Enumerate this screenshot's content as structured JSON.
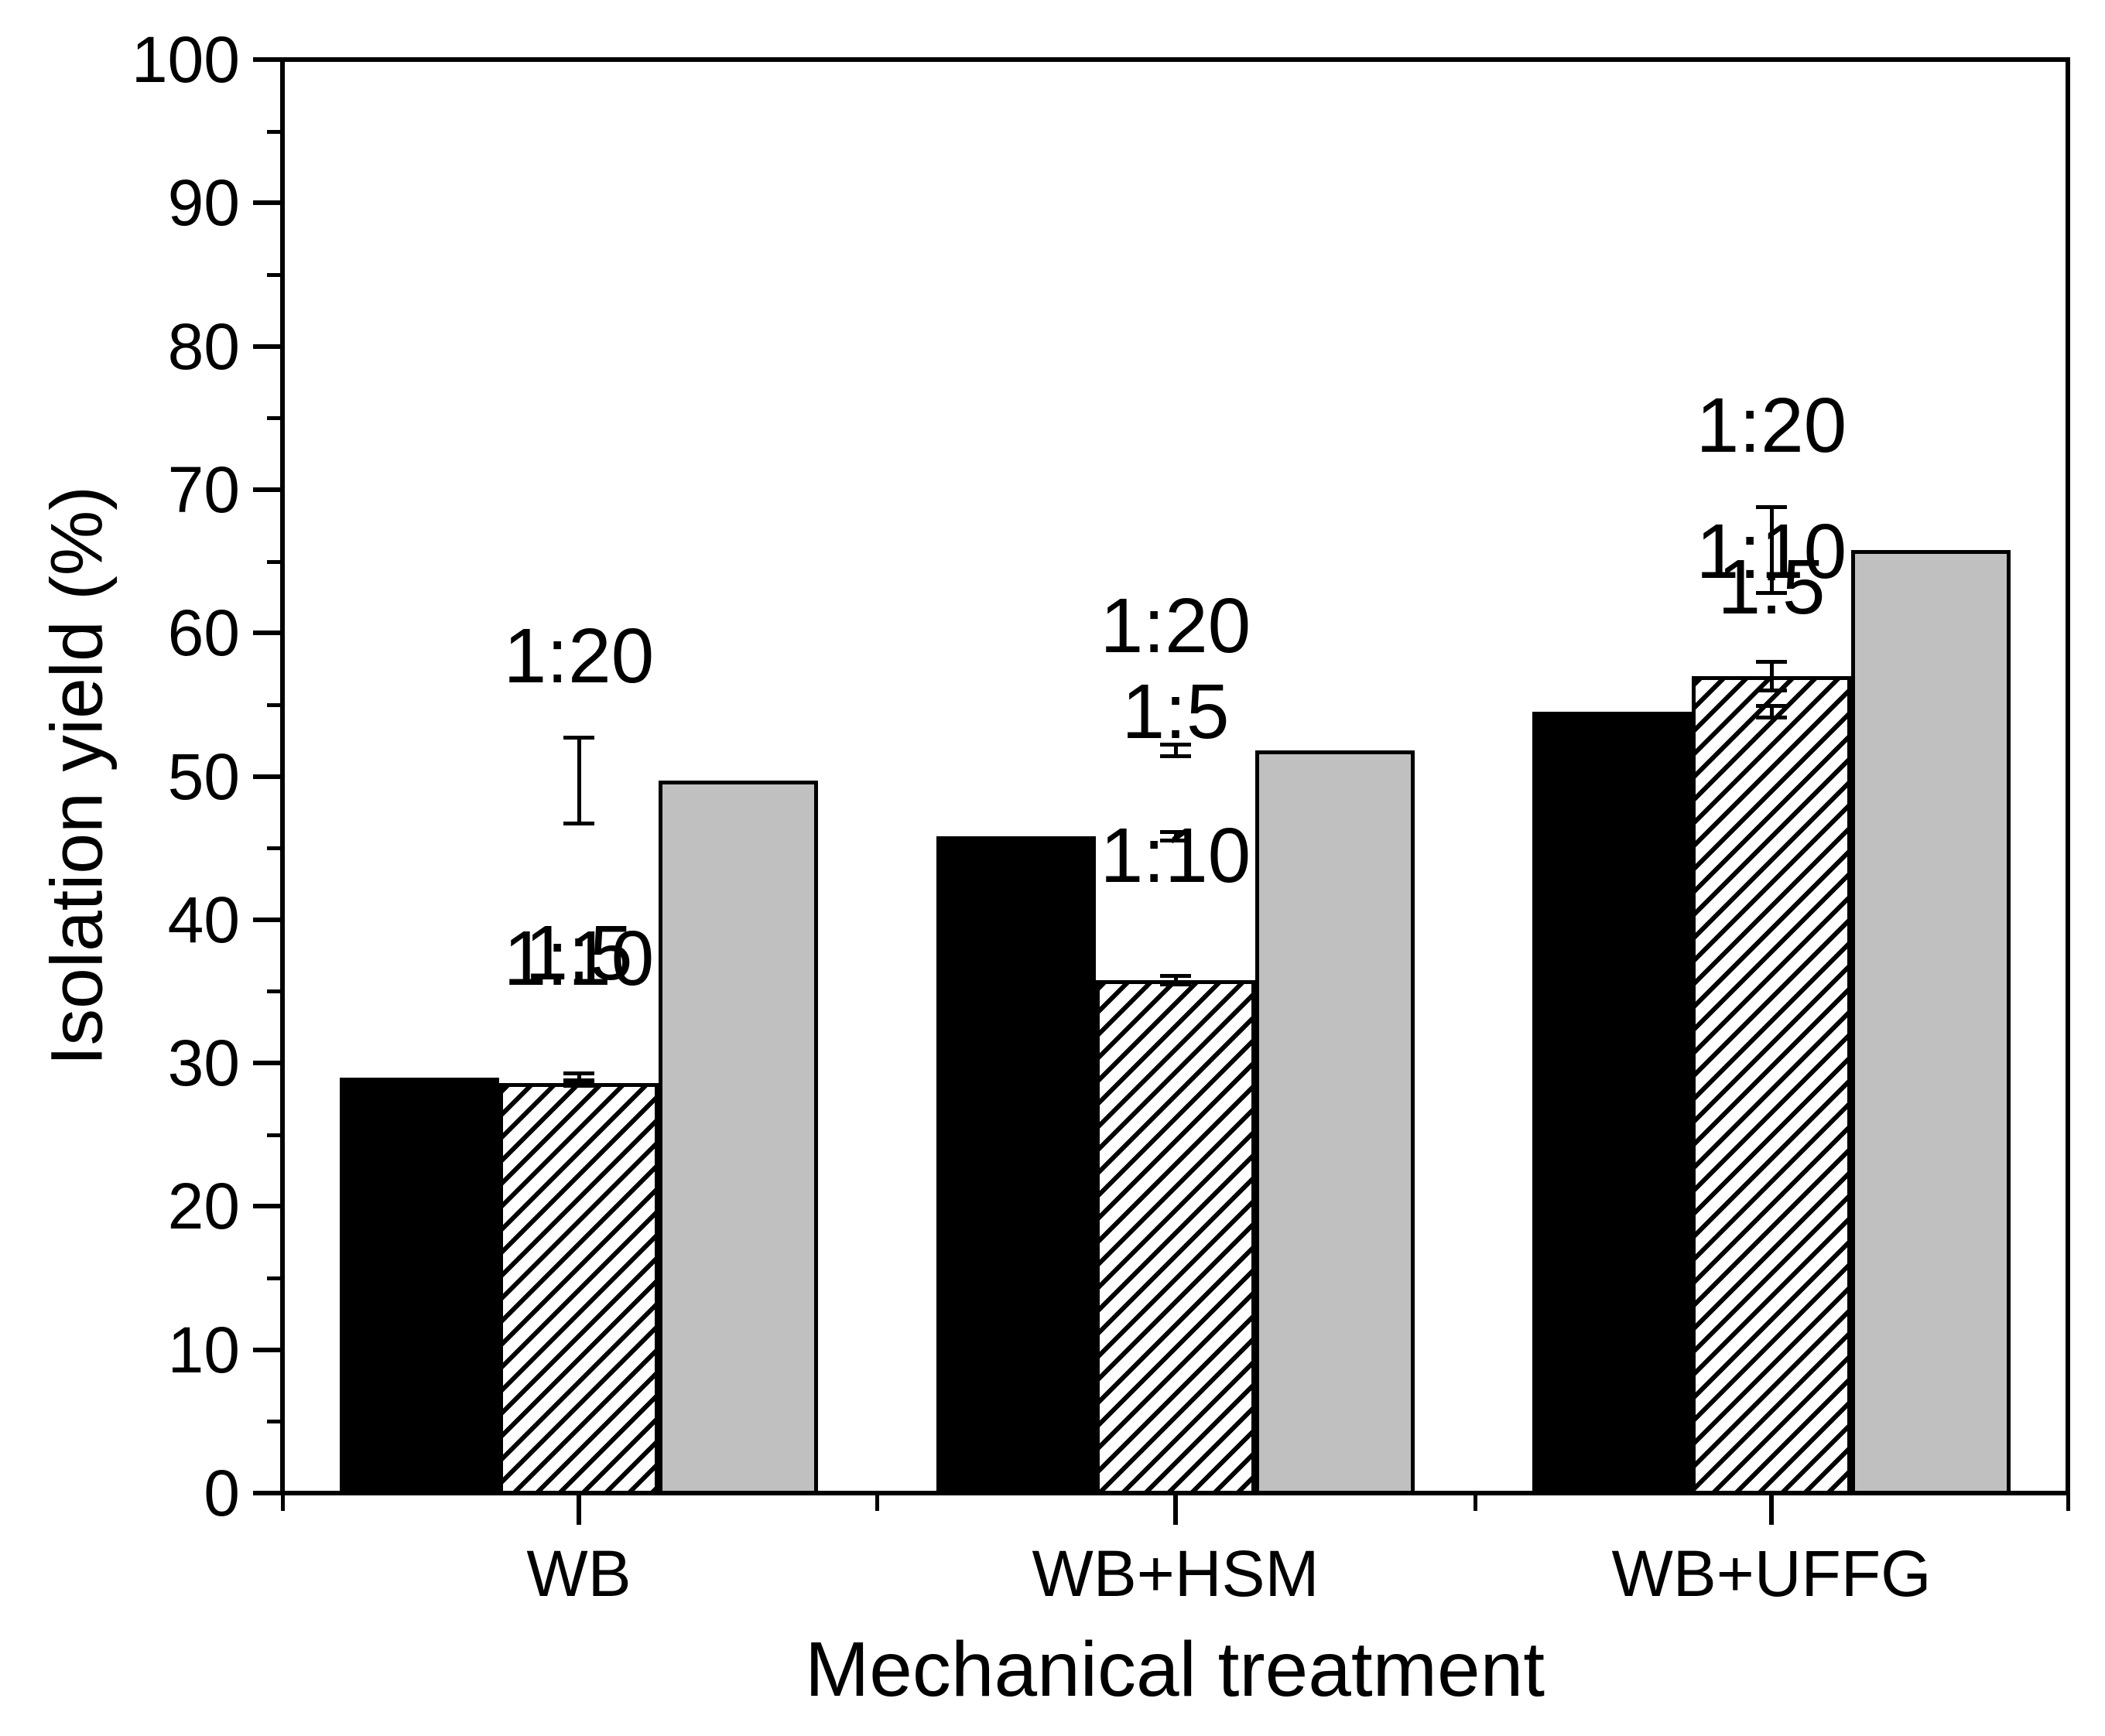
{
  "chart_data": {
    "type": "bar",
    "title": "",
    "xlabel": "Mechanical treatment",
    "ylabel": "Isolation yield (%)",
    "categories": [
      "WB",
      "WB+HSM",
      "WB+UFFG"
    ],
    "series": [
      {
        "name": "1:5",
        "style": "solid-black",
        "values": [
          29.0,
          45.8,
          54.5
        ],
        "errors": [
          0.3,
          0.3,
          0.4
        ]
      },
      {
        "name": "1:10",
        "style": "diagonal-hatch",
        "values": [
          28.6,
          35.8,
          57.0
        ],
        "errors": [
          0.2,
          0.3,
          1.0
        ]
      },
      {
        "name": "1:20",
        "style": "solid-gray",
        "values": [
          49.7,
          51.8,
          65.8
        ],
        "errors": [
          3.0,
          0.4,
          3.0
        ]
      }
    ],
    "ylim": [
      0,
      100
    ],
    "ytick_labels": [
      "0",
      "10",
      "20",
      "30",
      "40",
      "50",
      "60",
      "70",
      "80",
      "90",
      "100"
    ],
    "ytick_major_step": 10,
    "ytick_minor_step": 5,
    "error_bars": "symmetric, capped",
    "bar_annotations": "each bar labeled with its liquid ratio above the error bar",
    "legend": "none",
    "grid": "off",
    "colors": {
      "background": "#ffffff",
      "axis": "#000000",
      "bar_black": "#000000",
      "bar_gray": "#c0c0c0",
      "hatch_line": "#000000",
      "text": "#000000"
    }
  }
}
